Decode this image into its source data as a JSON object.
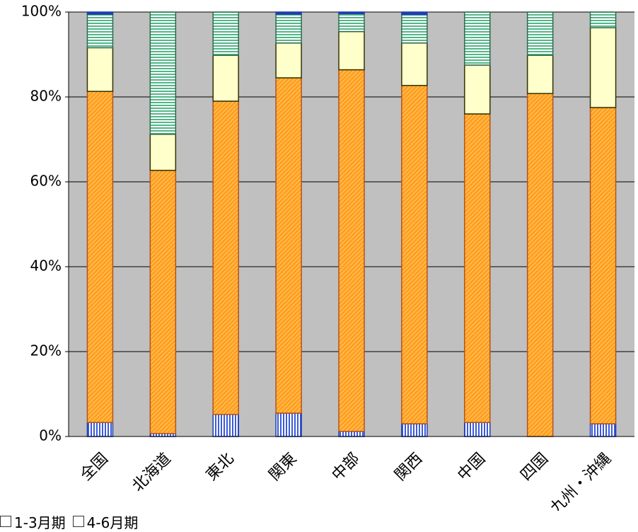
{
  "chart_data": {
    "type": "bar",
    "stacked": "percent",
    "categories": [
      "全国",
      "北海道",
      "東北",
      "関東",
      "中部",
      "関西",
      "中国",
      "四国",
      "九州・沖縄"
    ],
    "series": [
      {
        "name": "",
        "color": "#3b5bdb",
        "pattern": "vertical-lines",
        "values": [
          3.3,
          0.7,
          5.2,
          5.5,
          1.2,
          3.0,
          3.3,
          0.0,
          3.0
        ]
      },
      {
        "name": "",
        "color": "#ff9f1c",
        "pattern": "diagonal-lines",
        "values": [
          78.0,
          62.0,
          73.8,
          79.0,
          85.2,
          79.7,
          72.7,
          80.8,
          74.5
        ]
      },
      {
        "name": "",
        "color": "#ffffcc",
        "pattern": "solid",
        "values": [
          10.3,
          8.5,
          10.8,
          8.2,
          9.0,
          10.0,
          11.5,
          9.0,
          18.8
        ]
      },
      {
        "name": "",
        "color": "#52b788",
        "pattern": "horizontal-lines",
        "values": [
          7.9,
          28.8,
          10.2,
          6.8,
          4.2,
          6.7,
          12.5,
          10.2,
          3.7
        ]
      },
      {
        "name": "",
        "color": "#1f3fb0",
        "pattern": "solid",
        "values": [
          0.5,
          0.0,
          0.0,
          0.5,
          0.4,
          0.6,
          0.0,
          0.0,
          0.0
        ]
      }
    ],
    "yticks": [
      "0%",
      "20%",
      "40%",
      "60%",
      "80%",
      "100%"
    ],
    "ylim": [
      0,
      100
    ],
    "grid": true,
    "plot_background": "#c0c0c0",
    "legend": {
      "position": "bottom-left",
      "items": [
        "1-3月期",
        "4-6月期"
      ]
    }
  }
}
